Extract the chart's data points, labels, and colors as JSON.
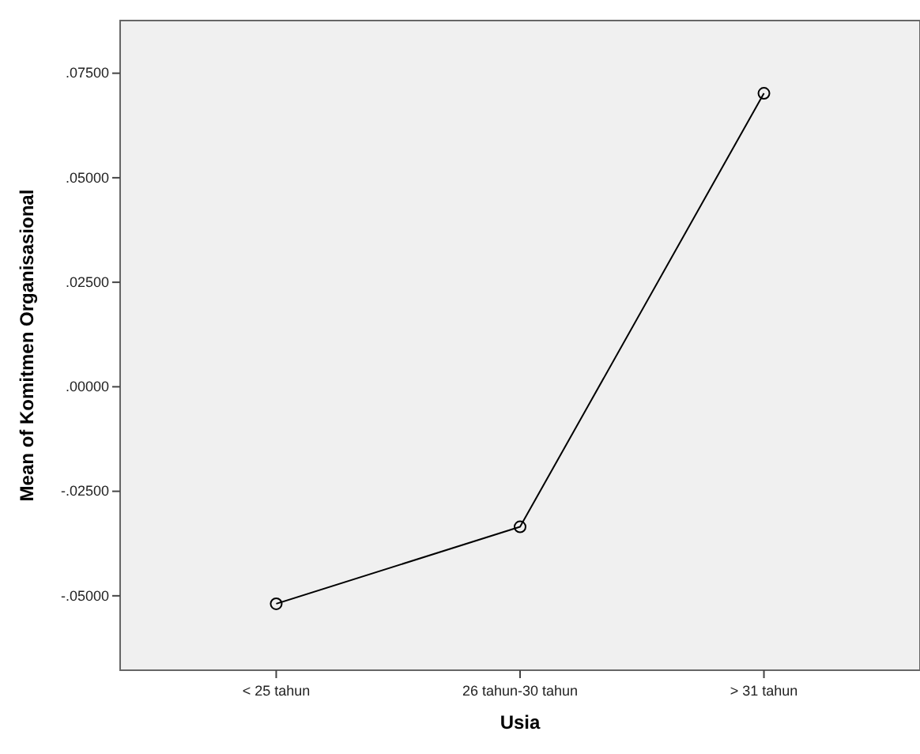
{
  "chart_data": {
    "type": "line",
    "xlabel": "Usia",
    "ylabel": "Mean of Komitmen Organisasional",
    "categories": [
      "< 25 tahun",
      "26 tahun-30 tahun",
      "> 31 tahun"
    ],
    "series": [
      {
        "color": "#000000",
        "values": [
          -0.0519,
          -0.0335,
          0.0702
        ]
      }
    ],
    "ylim": [
      -0.0678,
      0.0876
    ],
    "yticks": [
      {
        "value": -0.05,
        "label": "-.05000"
      },
      {
        "value": -0.025,
        "label": "-.02500"
      },
      {
        "value": 0,
        "label": ".00000"
      },
      {
        "value": 0.025,
        "label": ".02500"
      },
      {
        "value": 0.05,
        "label": ".05000"
      },
      {
        "value": 0.075,
        "label": ".07500"
      }
    ],
    "grid": false,
    "marker": "circle",
    "line_style": "solid"
  }
}
